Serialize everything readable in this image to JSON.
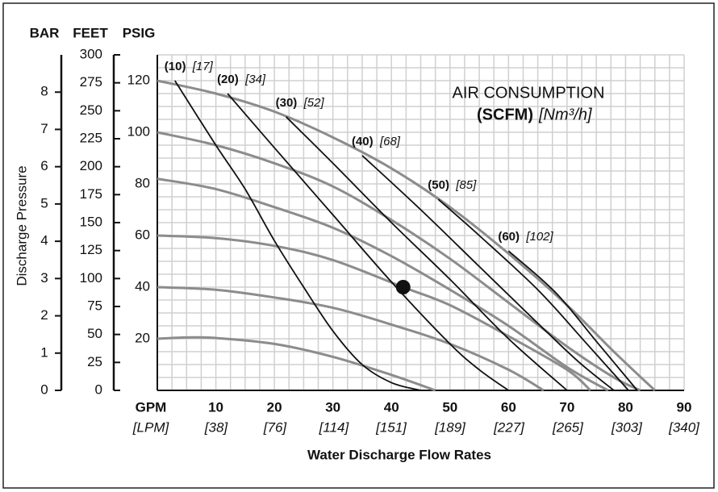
{
  "chart_data": {
    "type": "line",
    "annotation": {
      "line1": "AIR CONSUMPTION",
      "line2": "(SCFM)",
      "line3": "[Nm³/h]"
    },
    "y_axis_label": "Discharge Pressure",
    "x_axis_label": "Water Discharge Flow Rates",
    "xlim": [
      0,
      90
    ],
    "xticks": [
      {
        "value": 0,
        "label": "GPM"
      },
      10,
      20,
      30,
      40,
      50,
      60,
      70,
      80,
      90
    ],
    "x2lim": [
      0,
      340
    ],
    "x2ticks": [
      {
        "value": 0,
        "label": "[LPM]"
      },
      {
        "value": 38,
        "label": "[38]"
      },
      {
        "value": 76,
        "label": "[76]"
      },
      {
        "value": 114,
        "label": "[114]"
      },
      {
        "value": 151,
        "label": "[151]"
      },
      {
        "value": 189,
        "label": "[189]"
      },
      {
        "value": 227,
        "label": "[227]"
      },
      {
        "value": 265,
        "label": "[265]"
      },
      {
        "value": 303,
        "label": "[303]"
      },
      {
        "value": 340,
        "label": "[340]"
      }
    ],
    "ylabel": "PSIG",
    "ylim": [
      0,
      130
    ],
    "yticks": [
      20,
      40,
      60,
      80,
      100,
      120
    ],
    "feet": {
      "label": "FEET",
      "lim": [
        0,
        300
      ],
      "ticks": [
        0,
        25,
        50,
        75,
        100,
        125,
        150,
        175,
        200,
        225,
        250,
        275,
        300
      ]
    },
    "bar": {
      "label": "BAR",
      "lim": [
        0,
        9
      ],
      "ticks": [
        0,
        1,
        2,
        3,
        4,
        5,
        6,
        7,
        8
      ]
    },
    "grid_x": [
      0,
      2.5,
      5,
      7.5,
      10,
      12.5,
      15,
      17.5,
      20,
      22.5,
      25,
      27.5,
      30,
      32.5,
      35,
      37.5,
      40,
      42.5,
      45,
      47.5,
      50,
      52.5,
      55,
      57.5,
      60,
      62.5,
      65,
      67.5,
      70,
      72.5,
      75,
      77.5,
      80,
      82.5,
      85,
      87.5,
      90
    ],
    "grid_y": [
      0,
      5,
      10,
      15,
      20,
      25,
      30,
      35,
      40,
      45,
      50,
      55,
      60,
      65,
      70,
      75,
      80,
      85,
      90,
      95,
      100,
      105,
      110,
      115,
      120,
      125,
      130
    ],
    "series": [
      {
        "color": "#8c8c8c",
        "x": [
          0,
          10,
          20,
          30,
          40,
          50,
          60,
          70,
          78,
          85
        ],
        "values": [
          120,
          115,
          108,
          98,
          86,
          71,
          53,
          33,
          15,
          0
        ]
      },
      {
        "color": "#8c8c8c",
        "x": [
          0,
          10,
          20,
          30,
          40,
          50,
          60,
          70,
          78,
          82.5
        ],
        "values": [
          100,
          95,
          88,
          79,
          66,
          51,
          34,
          17,
          5,
          0
        ]
      },
      {
        "color": "#8c8c8c",
        "x": [
          0,
          10,
          20,
          30,
          40,
          50,
          60,
          70,
          77
        ],
        "values": [
          82,
          78,
          71,
          63,
          52,
          39,
          25,
          9,
          0
        ]
      },
      {
        "color": "#8c8c8c",
        "x": [
          0,
          10,
          20,
          30,
          42,
          50,
          60,
          70,
          74
        ],
        "values": [
          60,
          59,
          56,
          50.5,
          40,
          33,
          21,
          8,
          0
        ]
      },
      {
        "color": "#8c8c8c",
        "x": [
          0,
          10,
          20,
          30,
          40,
          50,
          60,
          66
        ],
        "values": [
          40,
          39,
          36,
          32,
          25.5,
          18,
          8,
          0
        ]
      },
      {
        "color": "#8c8c8c",
        "x": [
          0,
          5,
          10,
          20,
          30,
          40,
          47.5
        ],
        "values": [
          20,
          20.5,
          20.3,
          18,
          13,
          6,
          0
        ]
      },
      {
        "name": "(10)",
        "metric": "[17]",
        "color": "#111111",
        "x": [
          3,
          10,
          15,
          20,
          25,
          30,
          35,
          40,
          45
        ],
        "values": [
          120,
          95,
          78,
          58,
          40,
          23,
          10,
          3,
          0
        ]
      },
      {
        "name": "(20)",
        "metric": "[34]",
        "color": "#111111",
        "x": [
          12,
          20,
          30,
          40,
          50,
          55,
          60
        ],
        "values": [
          115,
          94,
          68,
          42,
          18,
          8,
          0
        ]
      },
      {
        "name": "(30)",
        "metric": "[52]",
        "color": "#111111",
        "x": [
          22,
          30,
          40,
          50,
          60,
          70
        ],
        "values": [
          106,
          88,
          65,
          43,
          20,
          0
        ]
      },
      {
        "name": "(40)",
        "metric": "[68]",
        "color": "#111111",
        "x": [
          35,
          45,
          55,
          65,
          72,
          78
        ],
        "values": [
          91,
          70,
          48,
          26,
          11,
          0
        ]
      },
      {
        "name": "(50)",
        "metric": "[85]",
        "color": "#111111",
        "x": [
          48,
          55,
          65,
          73,
          80.5
        ],
        "values": [
          74,
          60,
          39,
          19,
          0
        ]
      },
      {
        "name": "(60)",
        "metric": "[102]",
        "color": "#111111",
        "x": [
          60,
          68,
          75,
          82
        ],
        "values": [
          54,
          38,
          19,
          0
        ]
      }
    ],
    "point": {
      "x": 42,
      "y": 40,
      "color": "#111111"
    }
  }
}
